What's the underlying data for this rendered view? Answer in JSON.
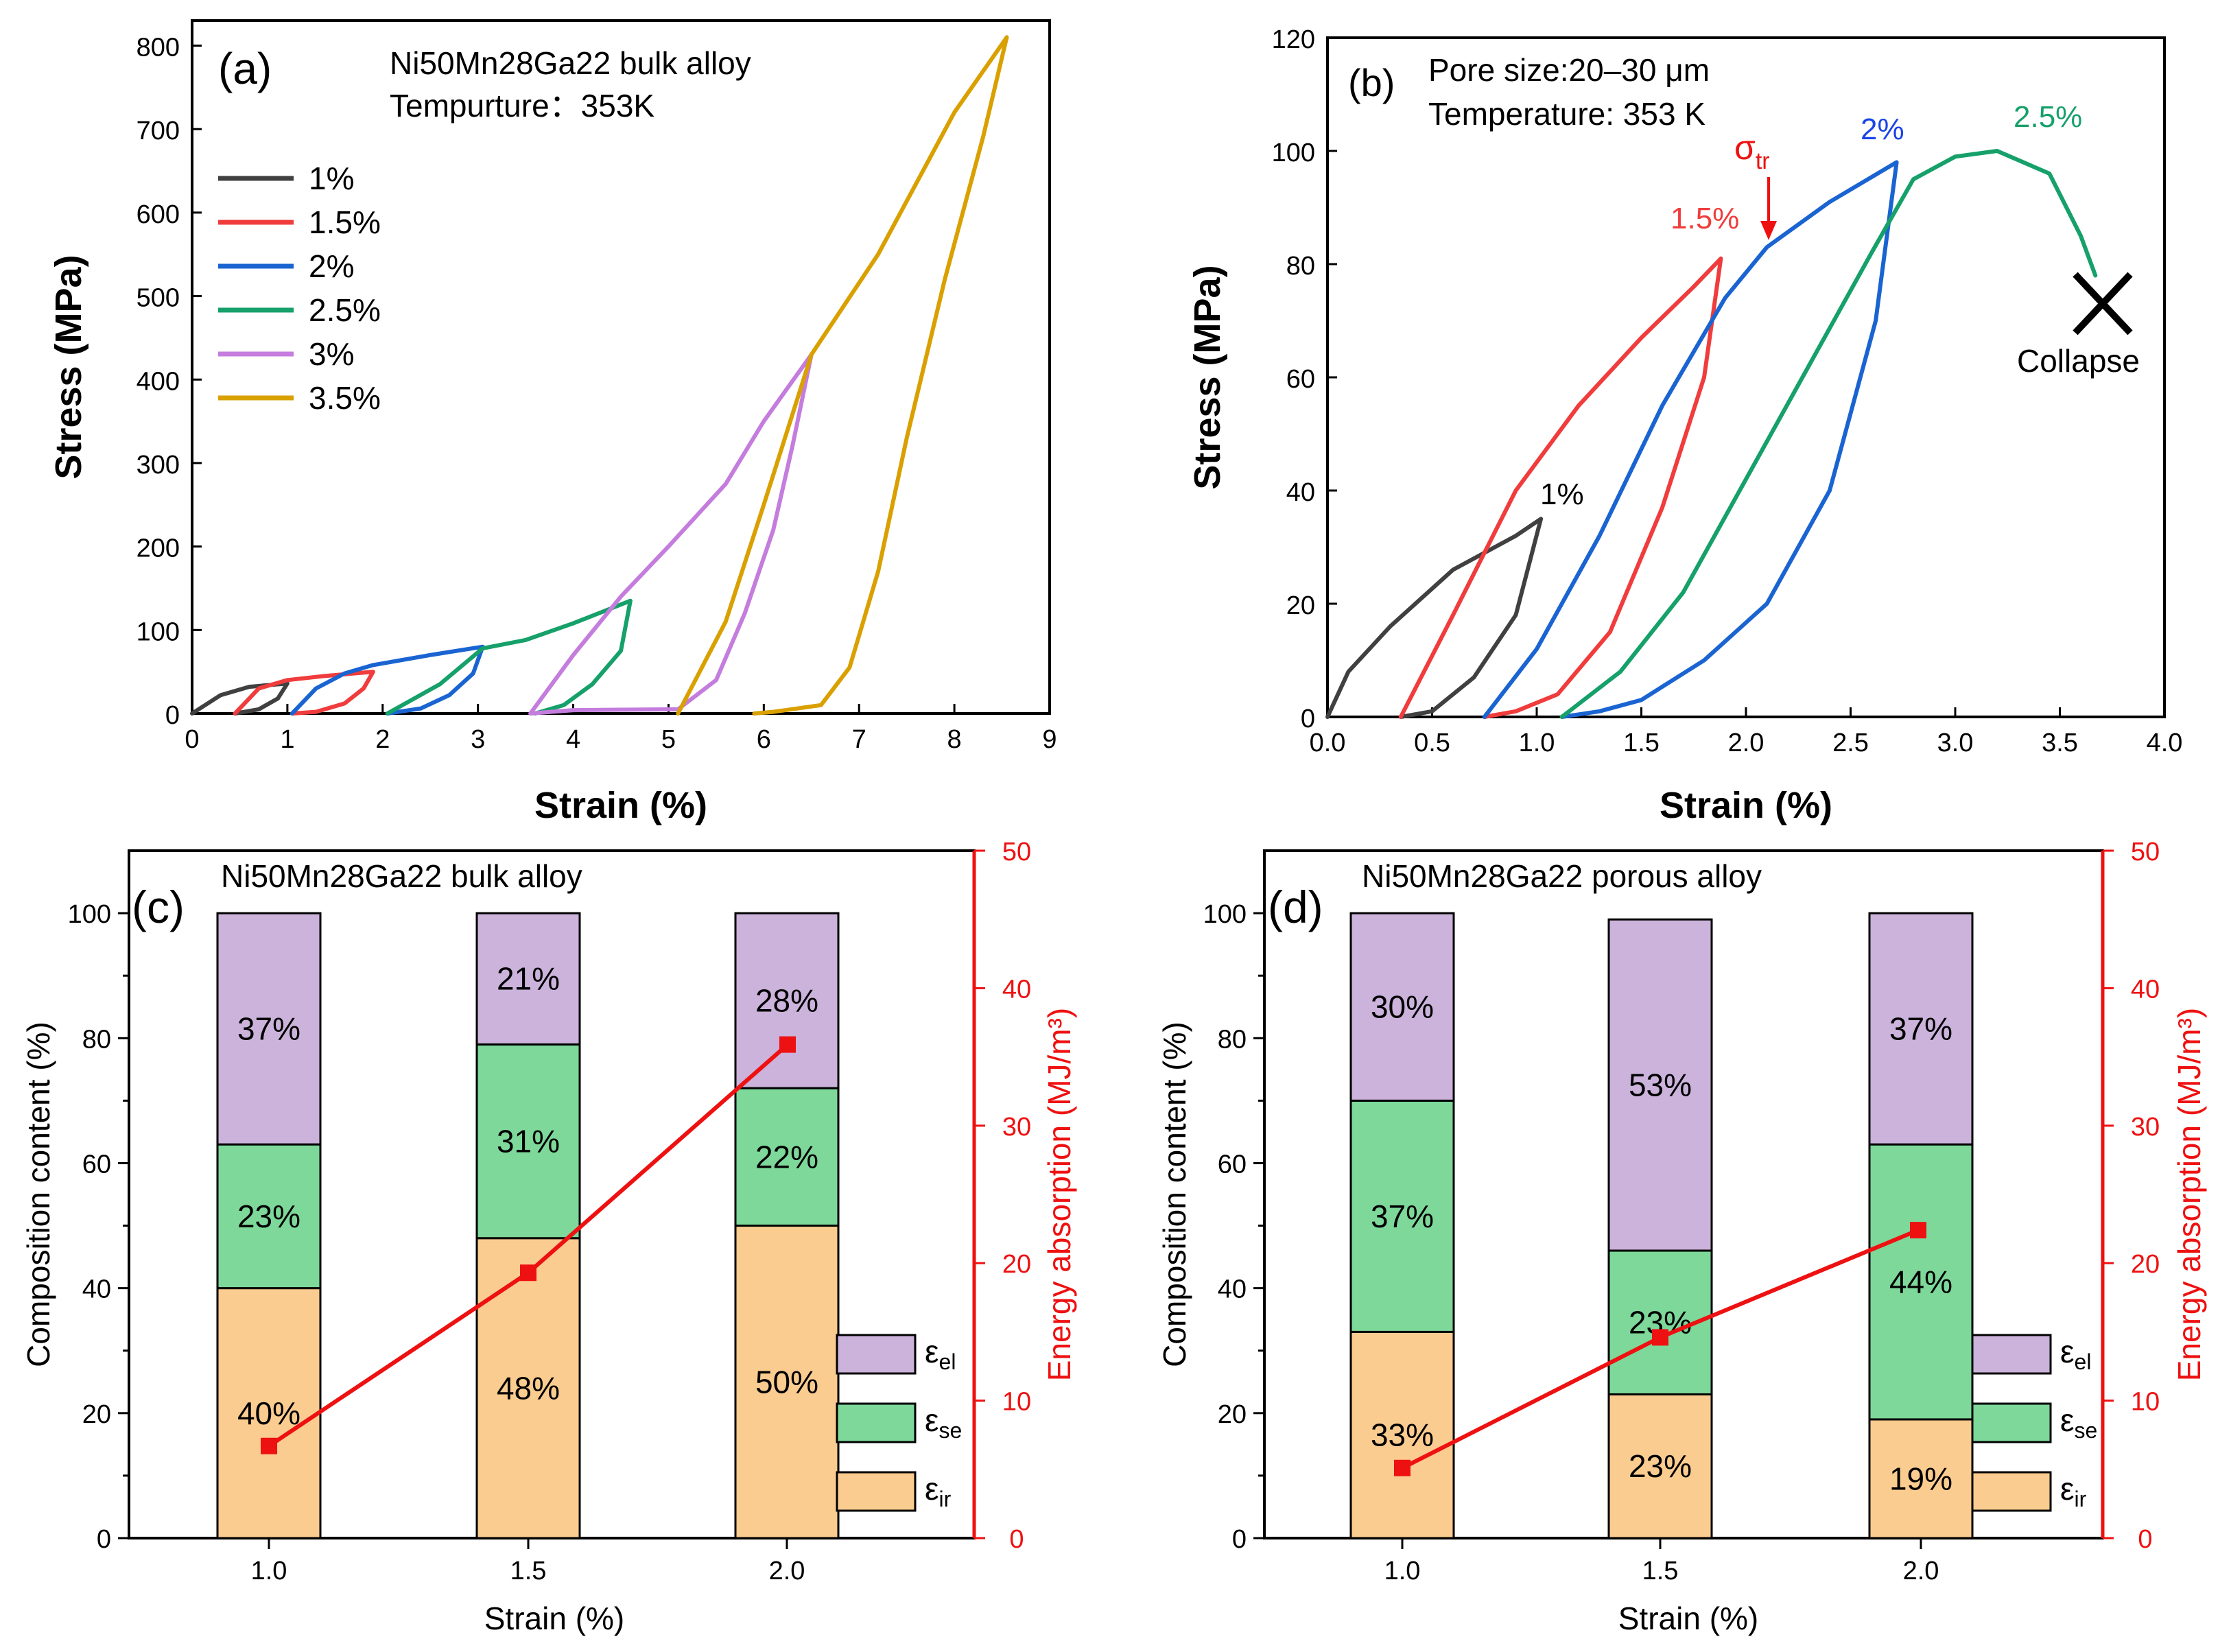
{
  "chart_data": [
    {
      "id": "a",
      "type": "line",
      "panel_label": "(a)",
      "annotations": [
        "Ni50Mn28Ga22 bulk alloy",
        "Tempurture：353K"
      ],
      "xlabel": "Strain (%)",
      "ylabel": "Stress (MPa)",
      "xlim": [
        0,
        9
      ],
      "ylim": [
        0,
        830
      ],
      "xticks": [
        "0",
        "1",
        "2",
        "3",
        "4",
        "5",
        "6",
        "7",
        "8",
        "9"
      ],
      "yticks": [
        "0",
        "100",
        "200",
        "300",
        "400",
        "500",
        "600",
        "700",
        "800"
      ],
      "legend_position": "top-left",
      "series": [
        {
          "name": "1%",
          "color": "#404040",
          "x": [
            0,
            0.3,
            0.6,
            1.0,
            0.9,
            0.7,
            0.45
          ],
          "y": [
            0,
            22,
            32,
            36,
            18,
            5,
            0
          ]
        },
        {
          "name": "1.5%",
          "color": "#f03c3c",
          "x": [
            0.45,
            0.7,
            1.0,
            1.4,
            1.9,
            1.8,
            1.6,
            1.3,
            1.05
          ],
          "y": [
            0,
            30,
            40,
            45,
            50,
            30,
            12,
            2,
            0
          ]
        },
        {
          "name": "2%",
          "color": "#1a64d2",
          "x": [
            1.05,
            1.3,
            1.6,
            1.9,
            2.5,
            3.05,
            2.95,
            2.7,
            2.4,
            2.05
          ],
          "y": [
            0,
            30,
            48,
            58,
            70,
            80,
            48,
            22,
            6,
            0
          ]
        },
        {
          "name": "2.5%",
          "color": "#16a06a",
          "x": [
            2.05,
            2.6,
            3.05,
            3.5,
            4.0,
            4.6,
            4.5,
            4.2,
            3.9,
            3.6
          ],
          "y": [
            0,
            35,
            78,
            88,
            108,
            135,
            75,
            35,
            10,
            0
          ]
        },
        {
          "name": "3%",
          "color": "#c47ddd",
          "x": [
            3.55,
            4.0,
            4.5,
            5.0,
            5.6,
            6.0,
            6.5,
            6.3,
            6.1,
            5.8,
            5.5,
            5.1,
            4.0,
            3.55
          ],
          "y": [
            0,
            70,
            140,
            200,
            275,
            350,
            430,
            320,
            220,
            120,
            40,
            5,
            4,
            0
          ]
        },
        {
          "name": "3.5%",
          "color": "#d9a000",
          "x": [
            5.1,
            5.6,
            6.0,
            6.5,
            7.2,
            8.0,
            8.55,
            8.3,
            7.9,
            7.5,
            7.2,
            6.9,
            6.6,
            6.1,
            5.9
          ],
          "y": [
            0,
            110,
            250,
            430,
            550,
            720,
            810,
            690,
            520,
            330,
            170,
            55,
            10,
            2,
            0
          ]
        }
      ]
    },
    {
      "id": "b",
      "type": "line",
      "panel_label": "(b)",
      "annotations": [
        "Pore size:20–30 μm",
        "Temperature: 353 K",
        "Collapse"
      ],
      "curve_labels": [
        "1%",
        "1.5%",
        "2%",
        "2.5%"
      ],
      "sigma_label": "σ",
      "sigma_subscript": "tr",
      "xlabel": "Strain (%)",
      "ylabel": "Stress (MPa)",
      "xlim": [
        0,
        4.0
      ],
      "ylim": [
        0,
        120
      ],
      "xticks": [
        "0.0",
        "0.5",
        "1.0",
        "1.5",
        "2.0",
        "2.5",
        "3.0",
        "3.5",
        "4.0"
      ],
      "yticks": [
        "0",
        "20",
        "40",
        "60",
        "80",
        "100",
        "120"
      ],
      "series": [
        {
          "name": "1%",
          "color": "#404040",
          "x": [
            0,
            0.1,
            0.3,
            0.6,
            0.9,
            1.02,
            0.9,
            0.7,
            0.5,
            0.35
          ],
          "y": [
            0,
            8,
            16,
            26,
            32,
            35,
            18,
            7,
            1,
            0
          ]
        },
        {
          "name": "1.5%",
          "color": "#f03c3c",
          "x": [
            0.35,
            0.6,
            0.9,
            1.2,
            1.5,
            1.75,
            1.88,
            1.8,
            1.6,
            1.35,
            1.1,
            0.9,
            0.75
          ],
          "y": [
            0,
            18,
            40,
            55,
            67,
            76,
            81,
            60,
            37,
            15,
            4,
            1,
            0
          ]
        },
        {
          "name": "2%",
          "color": "#1a64d2",
          "x": [
            0.75,
            1.0,
            1.3,
            1.6,
            1.9,
            2.1,
            2.4,
            2.72,
            2.62,
            2.4,
            2.1,
            1.8,
            1.5,
            1.3,
            1.12
          ],
          "y": [
            0,
            12,
            32,
            55,
            74,
            83,
            91,
            98,
            70,
            40,
            20,
            10,
            3,
            1,
            0
          ]
        },
        {
          "name": "2.5%",
          "color": "#16a06a",
          "x": [
            1.12,
            1.4,
            1.7,
            2.0,
            2.3,
            2.6,
            2.8,
            3.0,
            3.2,
            3.45,
            3.6,
            3.67
          ],
          "y": [
            0,
            8,
            22,
            42,
            62,
            82,
            95,
            99,
            100,
            96,
            85,
            78
          ]
        }
      ]
    },
    {
      "id": "c",
      "type": "bar",
      "panel_label": "(c)",
      "title": "Ni50Mn28Ga22 bulk alloy",
      "categories": [
        "1.0",
        "1.5",
        "2.0"
      ],
      "xlabel": "Strain (%)",
      "ylabel": "Composition content (%)",
      "ylabel_right": "Energy absorption (MJ/m³)",
      "ylim": [
        0,
        110
      ],
      "ylim_right": [
        0,
        50
      ],
      "yticks": [
        "0",
        "20",
        "40",
        "60",
        "80",
        "100"
      ],
      "yticks_right": [
        "0",
        "10",
        "20",
        "30",
        "40",
        "50"
      ],
      "series": [
        {
          "name": "εir",
          "color": "#fbcc90",
          "values": [
            40,
            48,
            50
          ],
          "labels": [
            "40%",
            "48%",
            "50%"
          ]
        },
        {
          "name": "εse",
          "color": "#7dd89a",
          "values": [
            23,
            31,
            22
          ],
          "labels": [
            "23%",
            "31%",
            "22%"
          ]
        },
        {
          "name": "εel",
          "color": "#cbb3db",
          "values": [
            37,
            21,
            28
          ],
          "labels": [
            "37%",
            "21%",
            "28%"
          ]
        }
      ],
      "legend": [
        {
          "sym": "ε",
          "sub": "el",
          "color": "#cbb3db"
        },
        {
          "sym": "ε",
          "sub": "se",
          "color": "#7dd89a"
        },
        {
          "sym": "ε",
          "sub": "ir",
          "color": "#fbcc90"
        }
      ],
      "energy": {
        "color": "#ee1111",
        "x": [
          1.0,
          1.5,
          2.0
        ],
        "values": [
          6.7,
          19.3,
          35.9
        ]
      }
    },
    {
      "id": "d",
      "type": "bar",
      "panel_label": "(d)",
      "title": "Ni50Mn28Ga22 porous alloy",
      "categories": [
        "1.0",
        "1.5",
        "2.0"
      ],
      "xlabel": "Strain (%)",
      "ylabel": "Composition content (%)",
      "ylabel_right": "Energy absorption (MJ/m³)",
      "ylim": [
        0,
        110
      ],
      "ylim_right": [
        0,
        50
      ],
      "yticks": [
        "0",
        "20",
        "40",
        "60",
        "80",
        "100"
      ],
      "yticks_right": [
        "0",
        "10",
        "20",
        "30",
        "40",
        "50"
      ],
      "series": [
        {
          "name": "εir",
          "color": "#fbcc90",
          "values": [
            33,
            23,
            19
          ],
          "labels": [
            "33%",
            "23%",
            "19%"
          ]
        },
        {
          "name": "εse",
          "color": "#7dd89a",
          "values": [
            37,
            23,
            44
          ],
          "labels": [
            "37%",
            "23%",
            "44%"
          ]
        },
        {
          "name": "εel",
          "color": "#cbb3db",
          "values": [
            30,
            53,
            37
          ],
          "labels": [
            "30%",
            "53%",
            "37%"
          ]
        }
      ],
      "legend": [
        {
          "sym": "ε",
          "sub": "el",
          "color": "#cbb3db"
        },
        {
          "sym": "ε",
          "sub": "se",
          "color": "#7dd89a"
        },
        {
          "sym": "ε",
          "sub": "ir",
          "color": "#fbcc90"
        }
      ],
      "energy": {
        "color": "#ee1111",
        "x": [
          1.0,
          1.5,
          2.0
        ],
        "values": [
          5.1,
          14.6,
          22.4
        ]
      }
    }
  ]
}
